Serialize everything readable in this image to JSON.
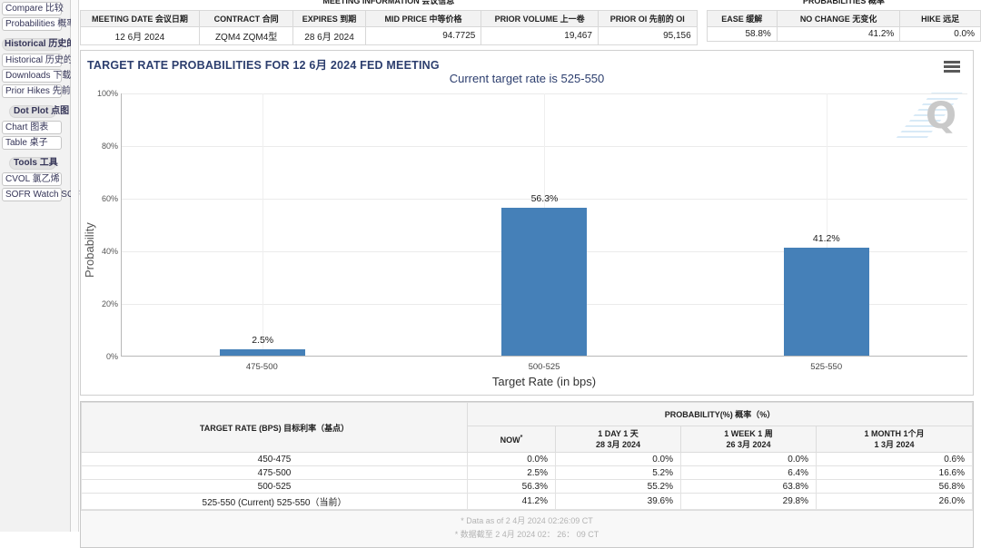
{
  "sidebar": {
    "items": [
      {
        "label": "Compare 比较"
      },
      {
        "label": "Probabilities 概率"
      },
      {
        "label": "Historical 历史的"
      },
      {
        "label": "Historical 历史的"
      },
      {
        "label": "Downloads 下载"
      },
      {
        "label": "Prior Hikes 先前的加"
      },
      {
        "label": "Dot Plot 点图"
      },
      {
        "label": "Chart 图表"
      },
      {
        "label": "Table 桌子"
      },
      {
        "label": "Tools 工具"
      },
      {
        "label": "CVOL 氯乙烯"
      },
      {
        "label": "SOFR Watch SOFR"
      }
    ]
  },
  "meeting_info": {
    "title": "MEETING INFORMATION 会议信息",
    "headers": [
      "MEETING DATE 会议日期",
      "CONTRACT 合同",
      "EXPIRES 到期",
      "MID PRICE 中等价格",
      "PRIOR VOLUME 上一卷",
      "PRIOR OI 先前的 OI"
    ],
    "values": [
      "12 6月 2024",
      "ZQM4 ZQM4型",
      "28 6月 2024",
      "94.7725",
      "19,467",
      "95,156"
    ]
  },
  "probabilities_summary": {
    "title": "PROBABILITIES 概率",
    "headers": [
      "EASE 缓解",
      "NO CHANGE 无变化",
      "HIKE 远足"
    ],
    "values": [
      "58.8%",
      "41.2%",
      "0.0%"
    ]
  },
  "chart_data": {
    "type": "bar",
    "title": "TARGET RATE PROBABILITIES FOR 12 6月 2024 FED MEETING",
    "subtitle": "Current target rate is 525-550",
    "categories": [
      "475-500",
      "500-525",
      "525-550"
    ],
    "values": [
      2.5,
      56.3,
      41.2
    ],
    "labels": [
      "2.5%",
      "56.3%",
      "41.2%"
    ],
    "xlabel": "Target Rate (in bps)",
    "ylabel": "Probability",
    "ylim": [
      0,
      100
    ],
    "yticks": [
      "100%",
      "80%",
      "60%",
      "40%",
      "20%",
      "0%"
    ],
    "grid": "on",
    "bar_color": "#4580b8"
  },
  "bottom_table": {
    "col1_header": "TARGET RATE (BPS) 目标利率（基点）",
    "group_header": "PROBABILITY(%) 概率（%）",
    "sub_headers": [
      {
        "line1": "NOW",
        "sup": "*",
        "line2": ""
      },
      {
        "line1": "1 DAY 1 天",
        "line2": "28 3月 2024"
      },
      {
        "line1": "1 WEEK 1 周",
        "line2": "26 3月 2024"
      },
      {
        "line1": "1 MONTH 1个月",
        "line2": "1 3月 2024"
      }
    ],
    "rows": [
      {
        "range": "450-475",
        "now": "0.0%",
        "day": "0.0%",
        "week": "0.0%",
        "month": "0.6%"
      },
      {
        "range": "475-500",
        "now": "2.5%",
        "day": "5.2%",
        "week": "6.4%",
        "month": "16.6%"
      },
      {
        "range": "500-525",
        "now": "56.3%",
        "day": "55.2%",
        "week": "63.8%",
        "month": "56.8%"
      },
      {
        "range": "525-550 (Current) 525-550（当前）",
        "now": "41.2%",
        "day": "39.6%",
        "week": "29.8%",
        "month": "26.0%"
      }
    ]
  },
  "footnotes": [
    "* Data as of 2 4月 2024 02:26:09 CT",
    "* 数据截至 2 4月 2024 02： 26： 09 CT"
  ]
}
